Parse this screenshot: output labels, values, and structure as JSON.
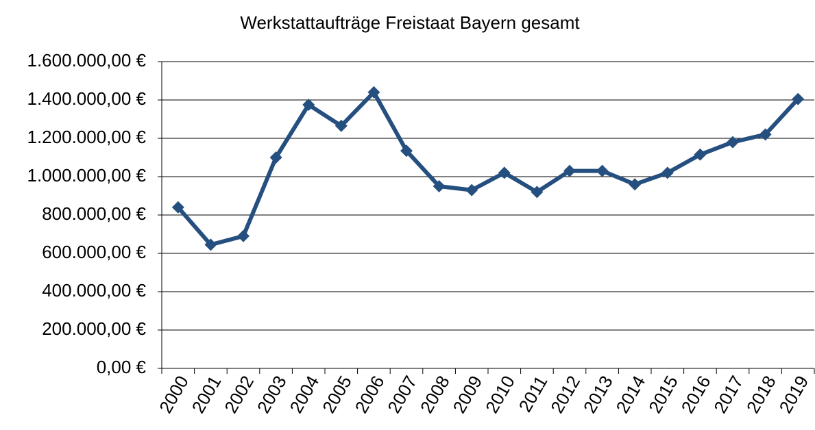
{
  "chart_data": {
    "type": "line",
    "title": "Werkstattaufträge Freistaat Bayern gesamt",
    "categories": [
      "2000",
      "2001",
      "2002",
      "2003",
      "2004",
      "2005",
      "2006",
      "2007",
      "2008",
      "2009",
      "2010",
      "2011",
      "2012",
      "2013",
      "2014",
      "2015",
      "2016",
      "2017",
      "2018",
      "2019"
    ],
    "series": [
      {
        "name": "Werkstattaufträge",
        "color": "#254f7f",
        "values": [
          840000,
          645000,
          690000,
          1100000,
          1375000,
          1265000,
          1440000,
          1135000,
          950000,
          930000,
          1020000,
          920000,
          1030000,
          1030000,
          960000,
          1020000,
          1115000,
          1180000,
          1220000,
          1405000
        ]
      }
    ],
    "ylim": [
      0,
      1600000
    ],
    "yticks": [
      {
        "value": 0,
        "label": "0,00 €"
      },
      {
        "value": 200000,
        "label": "200.000,00 €"
      },
      {
        "value": 400000,
        "label": "400.000,00 €"
      },
      {
        "value": 600000,
        "label": "600.000,00 €"
      },
      {
        "value": 800000,
        "label": "800.000,00 €"
      },
      {
        "value": 1000000,
        "label": "1.000.000,00 €"
      },
      {
        "value": 1200000,
        "label": "1.200.000,00 €"
      },
      {
        "value": 1400000,
        "label": "1.400.000,00 €"
      },
      {
        "value": 1600000,
        "label": "1.600.000,00 €"
      }
    ],
    "grid": true
  }
}
